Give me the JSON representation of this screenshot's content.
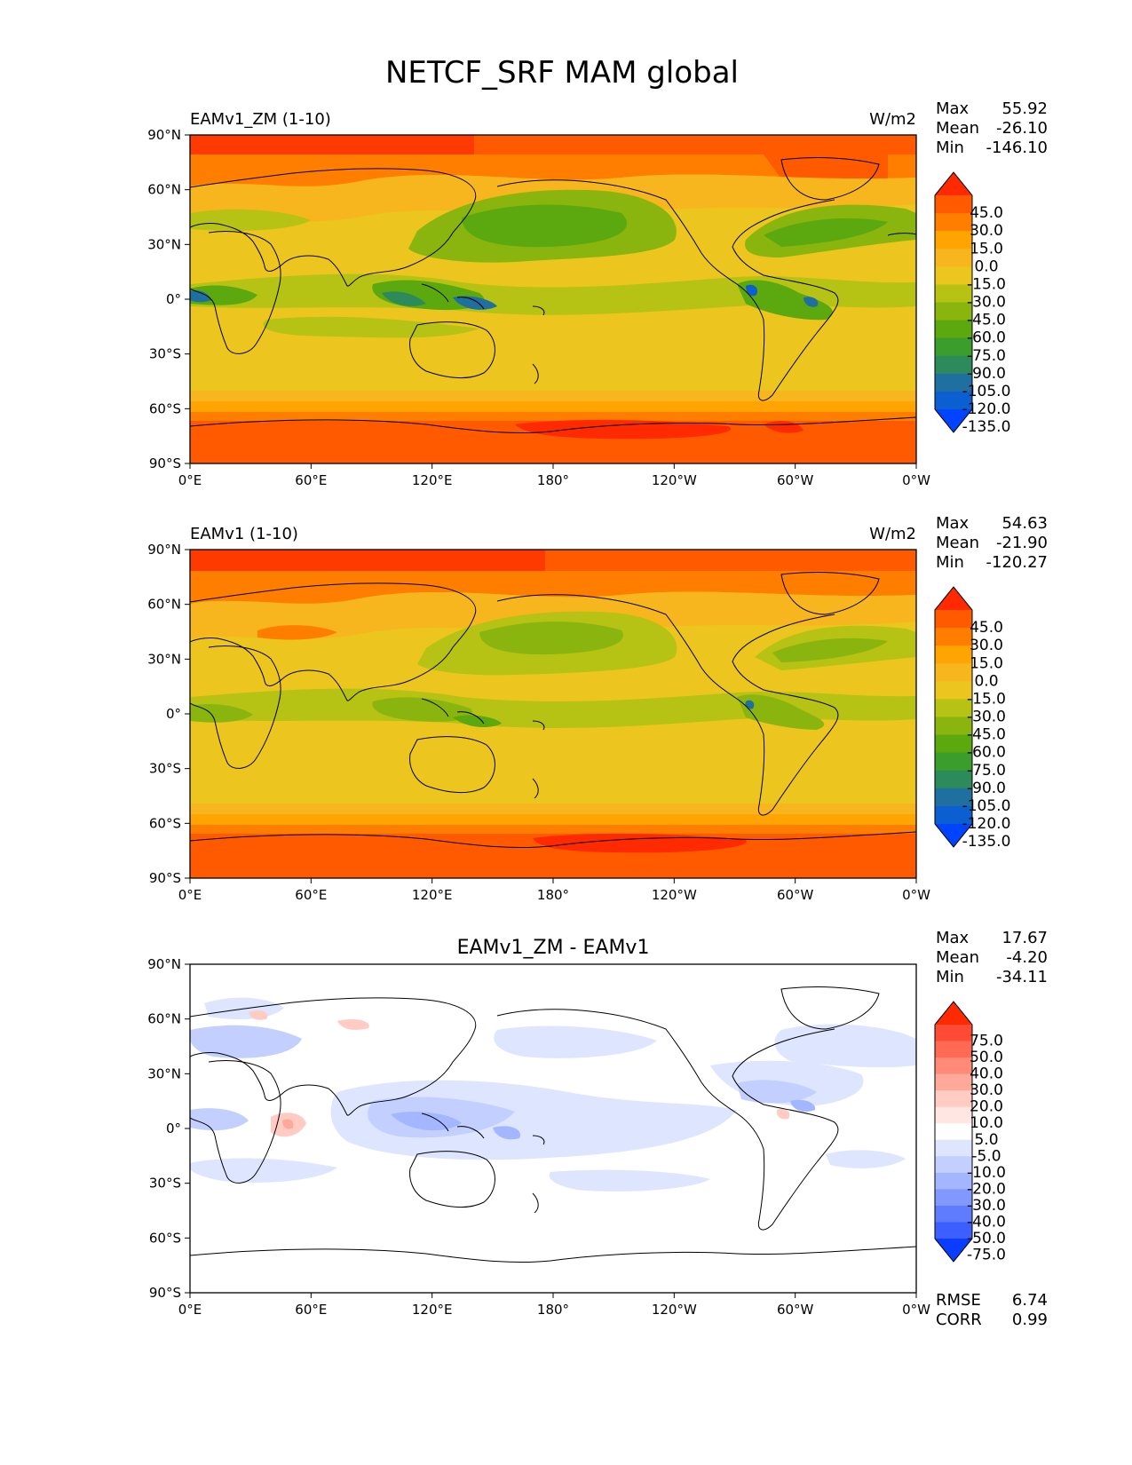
{
  "title": "NETCF_SRF MAM global",
  "x_ticks": [
    "0°E",
    "60°E",
    "120°E",
    "180°",
    "120°W",
    "60°W",
    "0°W"
  ],
  "y_ticks": [
    "90°N",
    "60°N",
    "30°N",
    "0°",
    "30°S",
    "60°S",
    "90°S"
  ],
  "panels": [
    {
      "name": "panel-test",
      "left_title": "EAMv1_ZM (1-10)",
      "center_title": "",
      "units": "W/m2",
      "stats": [
        [
          "Max",
          "55.92"
        ],
        [
          "Mean",
          "-26.10"
        ],
        [
          "Min",
          "-146.10"
        ]
      ],
      "colorbar": {
        "labels": [
          "45.0",
          "30.0",
          "15.0",
          "0.0",
          "-15.0",
          "-30.0",
          "-45.0",
          "-60.0",
          "-75.0",
          "-90.0",
          "-105.0",
          "-120.0",
          "-135.0"
        ],
        "colors": [
          "#ff2a00",
          "#ff5a00",
          "#ff7e00",
          "#ffa400",
          "#f7b51e",
          "#ecc61f",
          "#b6c214",
          "#8ab50f",
          "#5ca80f",
          "#3a9d2c",
          "#2d8a5a",
          "#1f6fa0",
          "#0b5fd0",
          "#0044ff"
        ]
      },
      "extra_stats": []
    },
    {
      "name": "panel-reference",
      "left_title": "EAMv1 (1-10)",
      "center_title": "",
      "units": "W/m2",
      "stats": [
        [
          "Max",
          "54.63"
        ],
        [
          "Mean",
          "-21.90"
        ],
        [
          "Min",
          "-120.27"
        ]
      ],
      "colorbar": {
        "labels": [
          "45.0",
          "30.0",
          "15.0",
          "0.0",
          "-15.0",
          "-30.0",
          "-45.0",
          "-60.0",
          "-75.0",
          "-90.0",
          "-105.0",
          "-120.0",
          "-135.0"
        ],
        "colors": [
          "#ff2a00",
          "#ff5a00",
          "#ff7e00",
          "#ffa400",
          "#f7b51e",
          "#ecc61f",
          "#b6c214",
          "#8ab50f",
          "#5ca80f",
          "#3a9d2c",
          "#2d8a5a",
          "#1f6fa0",
          "#0b5fd0",
          "#0044ff"
        ]
      },
      "extra_stats": []
    },
    {
      "name": "panel-difference",
      "left_title": "",
      "center_title": "EAMv1_ZM - EAMv1",
      "units": "",
      "stats": [
        [
          "Max",
          "17.67"
        ],
        [
          "Mean",
          "-4.20"
        ],
        [
          "Min",
          "-34.11"
        ]
      ],
      "colorbar": {
        "labels": [
          "75.0",
          "50.0",
          "40.0",
          "30.0",
          "20.0",
          "10.0",
          "5.0",
          "-5.0",
          "-10.0",
          "-20.0",
          "-30.0",
          "-40.0",
          "-50.0",
          "-75.0"
        ],
        "colors": [
          "#ff2a00",
          "#ff4b33",
          "#ff6a55",
          "#ff8a78",
          "#ffa99b",
          "#ffcbc2",
          "#ffe6e2",
          "#ffffff",
          "#dde5ff",
          "#c3d0ff",
          "#a3b6ff",
          "#8199ff",
          "#5f7cff",
          "#3d5fff",
          "#0a3dff"
        ]
      },
      "extra_stats": [
        [
          "RMSE",
          "6.74"
        ],
        [
          "CORR",
          "0.99"
        ]
      ]
    }
  ]
}
